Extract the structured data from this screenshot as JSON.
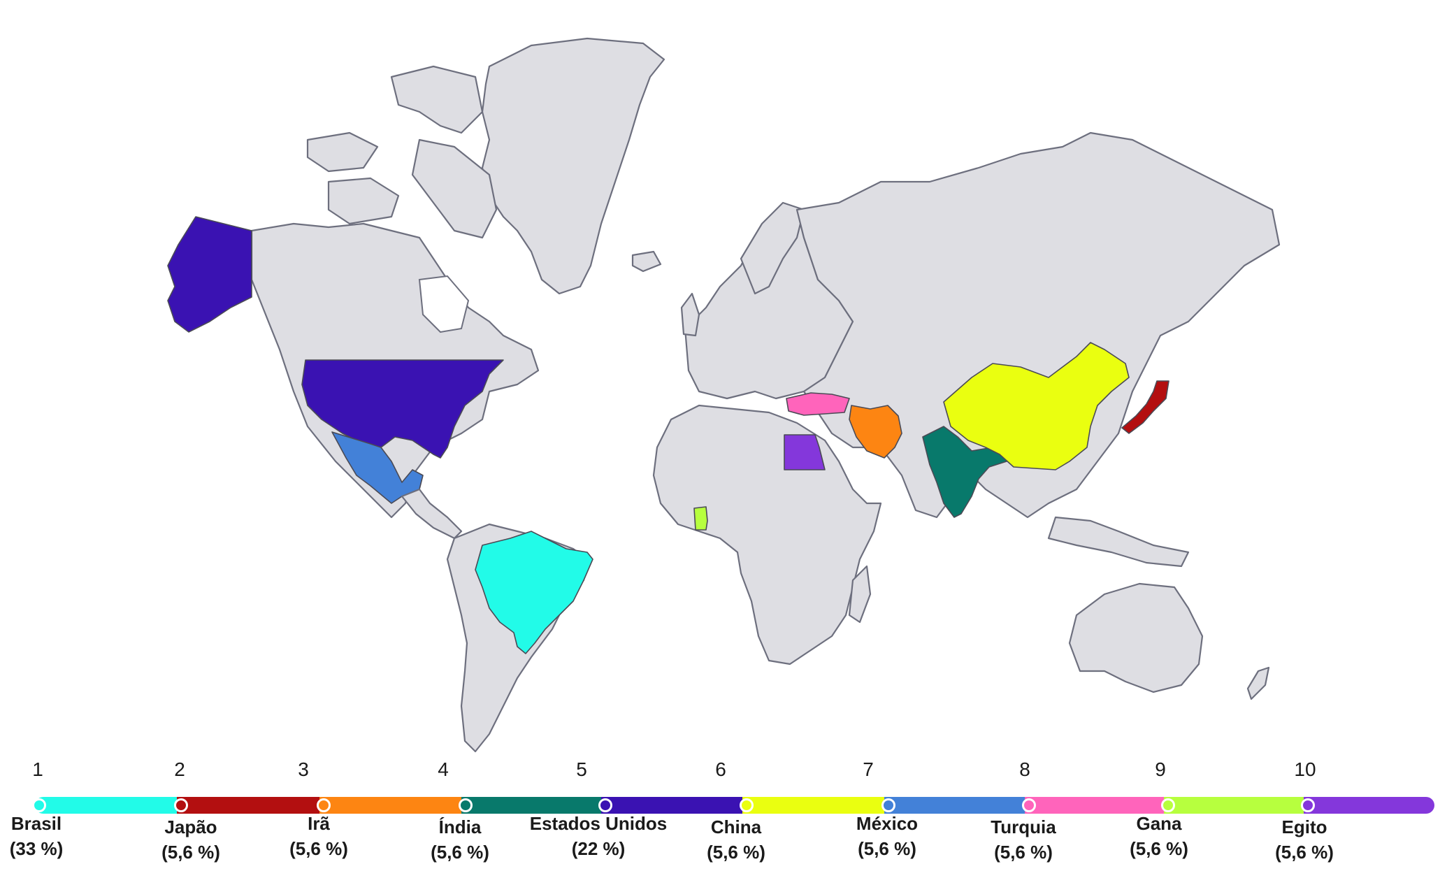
{
  "map": {
    "highlighted": [
      {
        "country": "Brasil",
        "color": "#22fbe8"
      },
      {
        "country": "Japão",
        "color": "#b30f10"
      },
      {
        "country": "Irã",
        "color": "#fd8512"
      },
      {
        "country": "Índia",
        "color": "#08796b"
      },
      {
        "country": "Estados Unidos",
        "color": "#3a12b2"
      },
      {
        "country": "China",
        "color": "#eaff10"
      },
      {
        "country": "México",
        "color": "#4381d8"
      },
      {
        "country": "Turquia",
        "color": "#ff64bb"
      },
      {
        "country": "Gana",
        "color": "#b7ff3e"
      },
      {
        "country": "Egito",
        "color": "#8437db"
      }
    ],
    "base_color": "#dedee3"
  },
  "timeline": {
    "items": [
      {
        "rank": "1",
        "name": "Brasil",
        "share": "(33 %)",
        "color": "#22fbe8"
      },
      {
        "rank": "2",
        "name": "Japão",
        "share": "(5,6 %)",
        "color": "#b30f10"
      },
      {
        "rank": "3",
        "name": "Irã",
        "share": "(5,6 %)",
        "color": "#fd8512"
      },
      {
        "rank": "4",
        "name": "Índia",
        "share": "(5,6 %)",
        "color": "#08796b"
      },
      {
        "rank": "5",
        "name": "Estados Unidos",
        "share": "(22 %)",
        "color": "#3a12b2"
      },
      {
        "rank": "6",
        "name": "China",
        "share": "(5,6 %)",
        "color": "#eaff10"
      },
      {
        "rank": "7",
        "name": "México",
        "share": "(5,6 %)",
        "color": "#4381d8"
      },
      {
        "rank": "8",
        "name": "Turquia",
        "share": "(5,6 %)",
        "color": "#ff64bb"
      },
      {
        "rank": "9",
        "name": "Gana",
        "share": "(5,6 %)",
        "color": "#b7ff3e"
      },
      {
        "rank": "10",
        "name": "Egito",
        "share": "(5,6 %)",
        "color": "#8437db"
      }
    ]
  }
}
